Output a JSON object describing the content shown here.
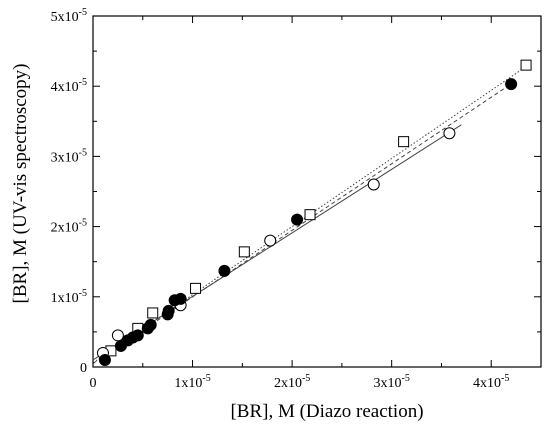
{
  "chart_data": {
    "type": "scatter",
    "title": "",
    "xlabel": "[BR], M  (Diazo reaction)",
    "ylabel": "[BR], M   (UV-vis spectroscopy)",
    "xlim": [
      0,
      4.5e-05
    ],
    "ylim": [
      0,
      5e-05
    ],
    "grid": false,
    "legend": "none",
    "x_ticks": [
      {
        "value": 0,
        "label": "0"
      },
      {
        "value": 1e-05,
        "label": "1x10",
        "exp": "-5"
      },
      {
        "value": 2e-05,
        "label": "2x10",
        "exp": "-5"
      },
      {
        "value": 3e-05,
        "label": "3x10",
        "exp": "-5"
      },
      {
        "value": 4e-05,
        "label": "4x10",
        "exp": "-5"
      }
    ],
    "y_ticks": [
      {
        "value": 0,
        "label": "0"
      },
      {
        "value": 1e-05,
        "label": "1x10",
        "exp": "-5"
      },
      {
        "value": 2e-05,
        "label": "2x10",
        "exp": "-5"
      },
      {
        "value": 3e-05,
        "label": "3x10",
        "exp": "-5"
      },
      {
        "value": 4e-05,
        "label": "4x10",
        "exp": "-5"
      },
      {
        "value": 5e-05,
        "label": "5x10",
        "exp": "-5"
      }
    ],
    "series": [
      {
        "marker": "filled-circle",
        "fit_line": "dashed",
        "fit": {
          "x0": 0,
          "y0": 5e-07,
          "x1": 4.25e-05,
          "y1": 4.08e-05
        },
        "x": [
          1.2e-06,
          2.8e-06,
          3.5e-06,
          4e-06,
          4.5e-06,
          5.5e-06,
          5.8e-06,
          7.5e-06,
          7.6e-06,
          8.2e-06,
          8.8e-06,
          1.32e-05,
          2.05e-05,
          4.2e-05
        ],
        "y": [
          1e-06,
          3e-06,
          3.8e-06,
          4.2e-06,
          4.5e-06,
          5.5e-06,
          6e-06,
          7.5e-06,
          8e-06,
          9.5e-06,
          9.7e-06,
          1.37e-05,
          2.1e-05,
          4.03e-05
        ]
      },
      {
        "marker": "open-circle",
        "fit_line": "solid",
        "fit": {
          "x0": 0,
          "y0": 1e-06,
          "x1": 3.7e-05,
          "y1": 3.45e-05
        },
        "x": [
          1e-06,
          2.5e-06,
          8.8e-06,
          1.78e-05,
          2.82e-05,
          3.58e-05
        ],
        "y": [
          2e-06,
          4.5e-06,
          8.8e-06,
          1.8e-05,
          2.6e-05,
          3.33e-05
        ]
      },
      {
        "marker": "open-square",
        "fit_line": "dotted",
        "fit": {
          "x0": 0,
          "y0": 6e-07,
          "x1": 4.35e-05,
          "y1": 4.28e-05
        },
        "x": [
          1.8e-06,
          4.5e-06,
          6e-06,
          1.03e-05,
          1.52e-05,
          2.18e-05,
          3.12e-05,
          4.35e-05
        ],
        "y": [
          2.3e-06,
          5.5e-06,
          7.7e-06,
          1.12e-05,
          1.64e-05,
          2.17e-05,
          3.21e-05,
          4.3e-05
        ]
      }
    ]
  }
}
